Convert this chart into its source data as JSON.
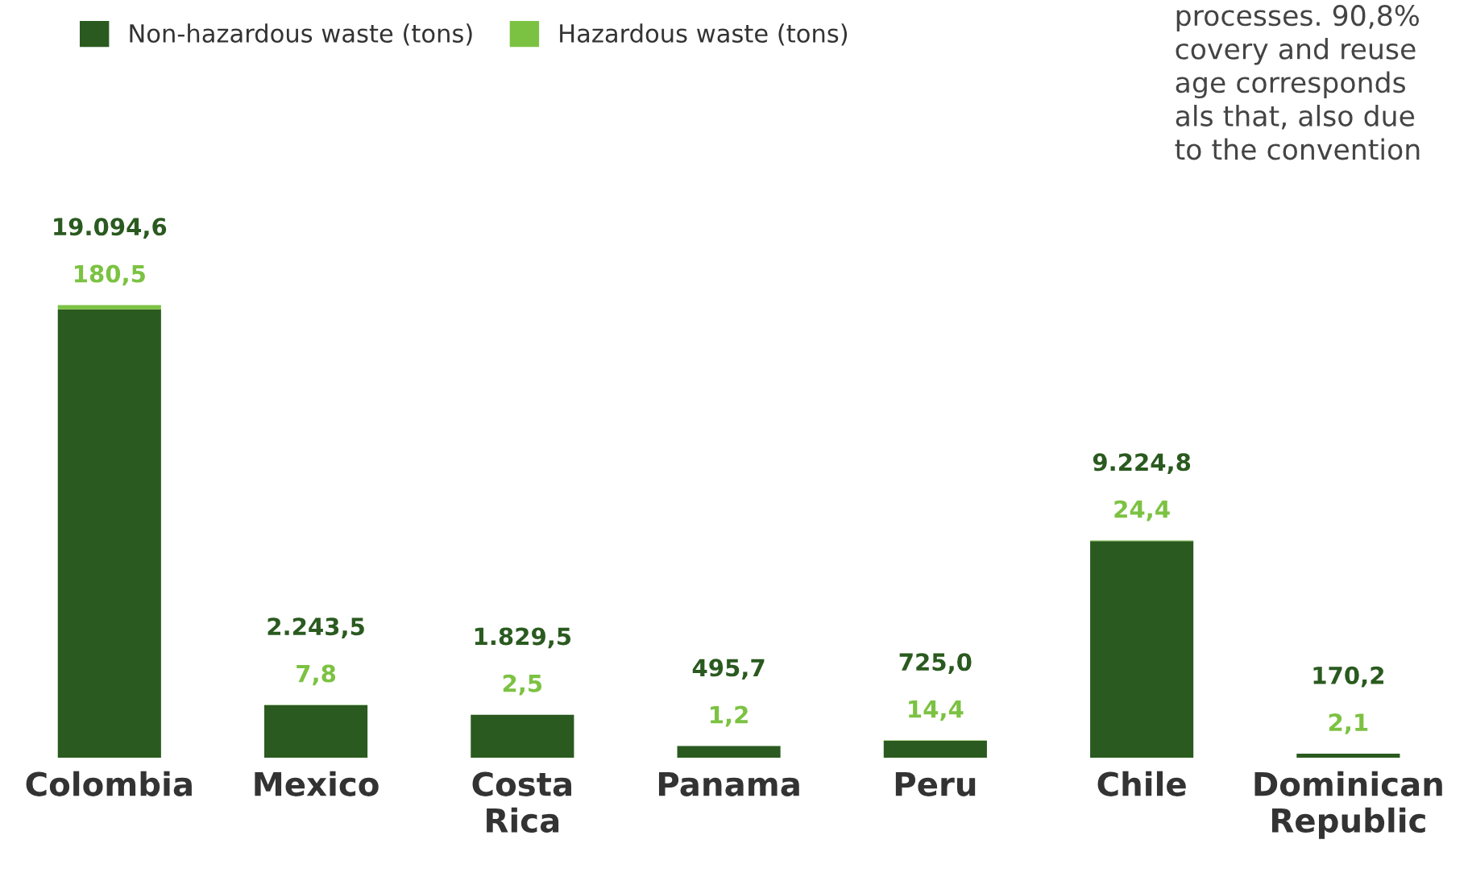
{
  "chart_data": {
    "type": "bar",
    "stacked": true,
    "legend": "top left",
    "categories": [
      "Colombia",
      "Mexico",
      "Costa Rica",
      "Panama",
      "Peru",
      "Chile",
      "Dominican Republic"
    ],
    "series": [
      {
        "name": "Non-hazardous waste (tons)",
        "color": "#2a5a1f",
        "values": [
          19094.6,
          2243.5,
          1829.5,
          495.7,
          725.0,
          9224.8,
          170.2
        ],
        "value_labels": [
          "19.094,6",
          "2.243,5",
          "1.829,5",
          "495,7",
          "725,0",
          "9.224,8",
          "170,2"
        ]
      },
      {
        "name": "Hazardous waste (tons)",
        "color": "#7cc242",
        "values": [
          180.5,
          7.8,
          2.5,
          1.2,
          14.4,
          24.4,
          2.1
        ],
        "value_labels": [
          "180,5",
          "7,8",
          "2,5",
          "1,2",
          "14,4",
          "24,4",
          "2,1"
        ]
      }
    ],
    "annotations": [
      "processes. 90,8%\ncovery and reuse\nage corresponds\nals that, also due\nto the convention"
    ]
  }
}
